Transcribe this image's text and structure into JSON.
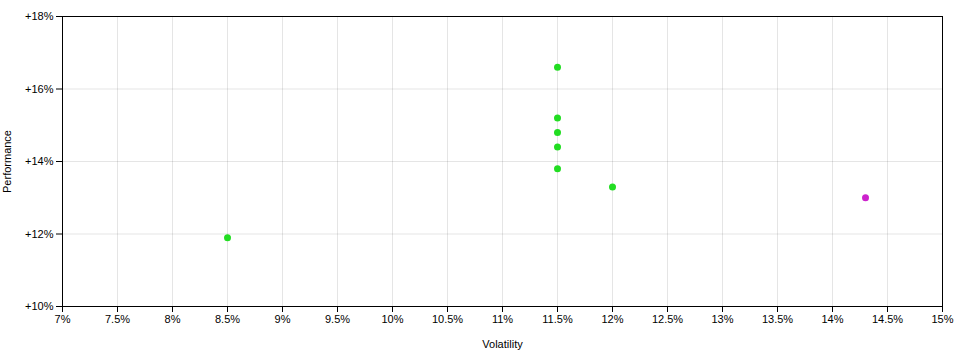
{
  "chart_data": {
    "type": "scatter",
    "xlabel": "Volatility",
    "ylabel": "Performance",
    "xlim": [
      0.07,
      0.15
    ],
    "ylim": [
      0.1,
      0.18
    ],
    "xticks": [
      {
        "value": 0.07,
        "label": "7%"
      },
      {
        "value": 0.075,
        "label": "7.5%"
      },
      {
        "value": 0.08,
        "label": "8%"
      },
      {
        "value": 0.085,
        "label": "8.5%"
      },
      {
        "value": 0.09,
        "label": "9%"
      },
      {
        "value": 0.095,
        "label": "9.5%"
      },
      {
        "value": 0.1,
        "label": "10%"
      },
      {
        "value": 0.105,
        "label": "10.5%"
      },
      {
        "value": 0.11,
        "label": "11%"
      },
      {
        "value": 0.115,
        "label": "11.5%"
      },
      {
        "value": 0.12,
        "label": "12%"
      },
      {
        "value": 0.125,
        "label": "12.5%"
      },
      {
        "value": 0.13,
        "label": "13%"
      },
      {
        "value": 0.135,
        "label": "13.5%"
      },
      {
        "value": 0.14,
        "label": "14%"
      },
      {
        "value": 0.145,
        "label": "14.5%"
      },
      {
        "value": 0.15,
        "label": "15%"
      }
    ],
    "yticks": [
      {
        "value": 0.1,
        "label": "+10%"
      },
      {
        "value": 0.12,
        "label": "+12%"
      },
      {
        "value": 0.14,
        "label": "+14%"
      },
      {
        "value": 0.16,
        "label": "+16%"
      },
      {
        "value": 0.18,
        "label": "+18%"
      }
    ],
    "grid": true,
    "series": [
      {
        "color": "#22dd22",
        "x": [
          0.085,
          0.115,
          0.115,
          0.115,
          0.115,
          0.115,
          0.12
        ],
        "values": [
          0.119,
          0.166,
          0.152,
          0.148,
          0.144,
          0.138,
          0.133
        ]
      },
      {
        "color": "#cc22cc",
        "x": [
          0.143
        ],
        "values": [
          0.13
        ]
      }
    ]
  }
}
